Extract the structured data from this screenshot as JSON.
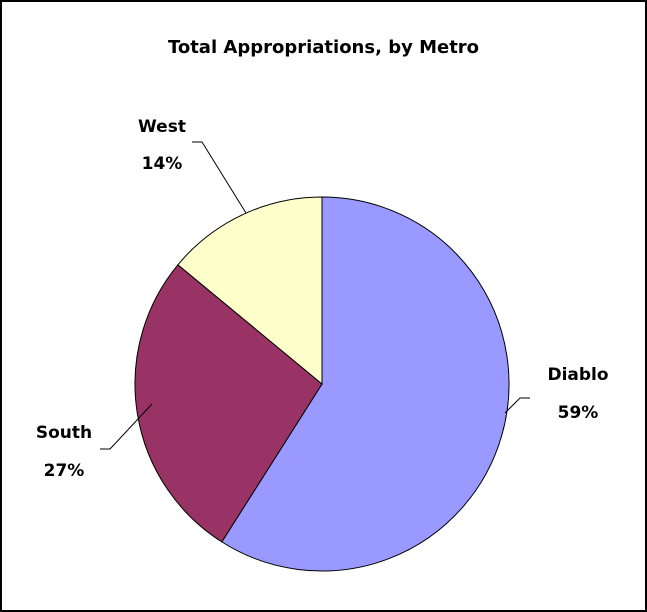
{
  "chart_data": {
    "type": "pie",
    "title": "Total Appropriations, by Metro",
    "slices": [
      {
        "name": "Diablo",
        "value": 59,
        "label": "59%",
        "color": "#9999ff"
      },
      {
        "name": "South",
        "value": 27,
        "label": "27%",
        "color": "#993366"
      },
      {
        "name": "West",
        "value": 14,
        "label": "14%",
        "color": "#ffffcc"
      }
    ],
    "start": "12 o'clock",
    "direction": "clockwise",
    "legend": "none",
    "data_labels": "category name and percentage, with leader lines"
  }
}
